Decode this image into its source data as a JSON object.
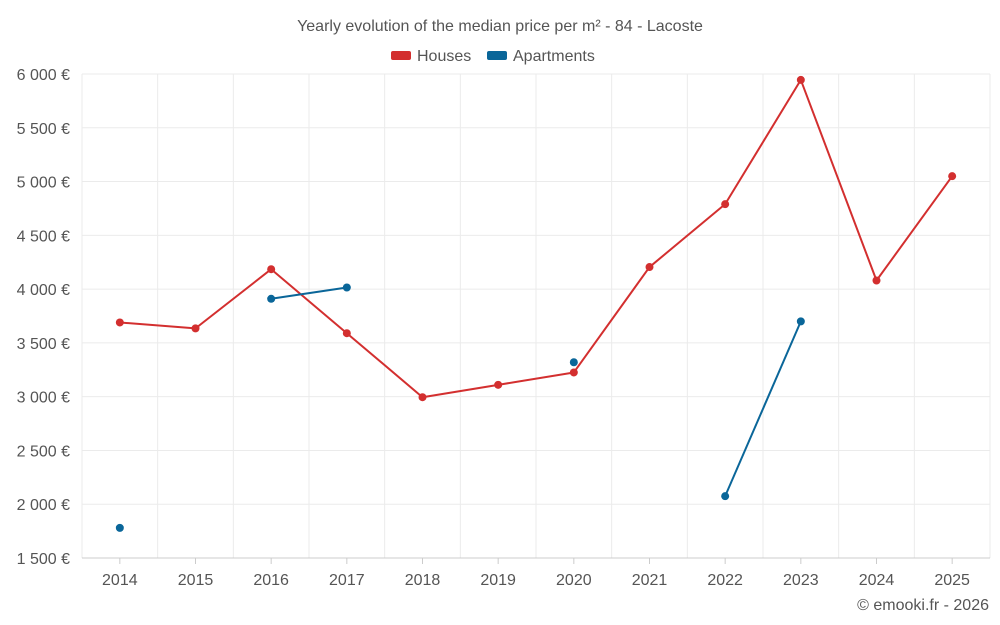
{
  "chart_data": {
    "type": "line",
    "title": "Yearly evolution of the median price per m² - 84 - Lacoste",
    "xlabel": "",
    "ylabel": "",
    "categories": [
      "2014",
      "2015",
      "2016",
      "2017",
      "2018",
      "2019",
      "2020",
      "2021",
      "2022",
      "2023",
      "2024",
      "2025"
    ],
    "y_ticks": [
      "1 500 €",
      "2 000 €",
      "2 500 €",
      "3 000 €",
      "3 500 €",
      "4 000 €",
      "4 500 €",
      "5 000 €",
      "5 500 €",
      "6 000 €"
    ],
    "ylim": [
      1500,
      6000
    ],
    "grid": true,
    "legend_position": "top-center",
    "series": [
      {
        "name": "Houses",
        "color": "#d32f2f",
        "values": [
          3690,
          3635,
          4185,
          3590,
          2995,
          3110,
          3225,
          4205,
          4790,
          5945,
          4080,
          5050
        ]
      },
      {
        "name": "Apartments",
        "color": "#0a6699",
        "values": [
          1780,
          null,
          3910,
          4015,
          null,
          null,
          3320,
          null,
          2075,
          3700,
          null,
          null
        ]
      }
    ],
    "credit": "© emooki.fr - 2026"
  }
}
